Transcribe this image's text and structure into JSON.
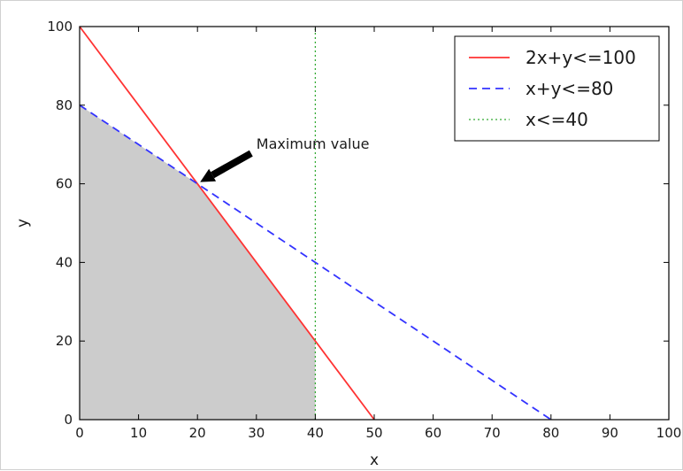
{
  "chart_data": {
    "type": "line",
    "xlabel": "x",
    "ylabel": "y",
    "xlim": [
      0,
      100
    ],
    "ylim": [
      0,
      100
    ],
    "x_ticks": [
      0,
      10,
      20,
      30,
      40,
      50,
      60,
      70,
      80,
      90,
      100
    ],
    "y_ticks": [
      0,
      20,
      40,
      60,
      80,
      100
    ],
    "x_tick_labels": [
      "0",
      "10",
      "20",
      "30",
      "40",
      "50",
      "60",
      "70",
      "80",
      "90",
      "100"
    ],
    "y_tick_labels": [
      "0",
      "20",
      "40",
      "60",
      "80",
      "100"
    ],
    "grid": false,
    "legend_position": "top-right",
    "series": [
      {
        "name": "2x+y<=100",
        "style": "solid",
        "color": "#ff3333",
        "x": [
          0,
          50
        ],
        "y": [
          100,
          0
        ]
      },
      {
        "name": "x+y<=80",
        "style": "dashed",
        "color": "#3333ff",
        "x": [
          0,
          80
        ],
        "y": [
          80,
          0
        ]
      },
      {
        "name": "x<=40",
        "style": "dotted",
        "color": "#33aa33",
        "x": [
          40,
          40
        ],
        "y": [
          0,
          100
        ]
      }
    ],
    "feasible_region": {
      "color": "#cccccc",
      "x": [
        0,
        20,
        40,
        40,
        0
      ],
      "y": [
        80,
        60,
        20,
        0,
        0
      ]
    },
    "annotation": {
      "text": "Maximum value",
      "point": [
        20,
        60
      ],
      "text_position": [
        30,
        70
      ]
    }
  }
}
